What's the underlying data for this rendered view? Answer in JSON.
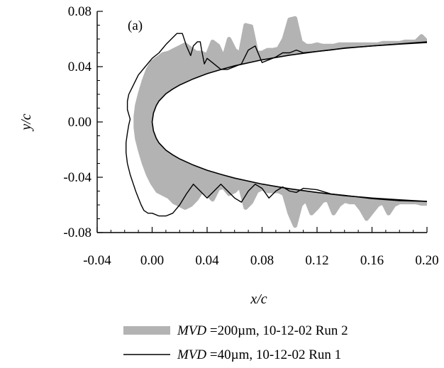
{
  "chart_data": {
    "type": "line",
    "title": "",
    "panel_label": "(a)",
    "xlabel": "x/c",
    "ylabel": "y/c",
    "xlim": [
      -0.04,
      0.2
    ],
    "ylim": [
      -0.08,
      0.08
    ],
    "x_ticks": [
      -0.04,
      0.0,
      0.04,
      0.08,
      0.12,
      0.16,
      0.2
    ],
    "x_tick_labels": [
      "-0.04",
      "0.00",
      "0.04",
      "0.08",
      "0.12",
      "0.16",
      "0.20"
    ],
    "y_ticks": [
      -0.08,
      -0.04,
      0.0,
      0.04,
      0.08
    ],
    "y_tick_labels": [
      "-0.08",
      "-0.04",
      "0.00",
      "0.04",
      "0.08"
    ],
    "grid": false,
    "legend_placement": "below",
    "colors": {
      "clean_airfoil": "#000000",
      "ice_200": "#b3b3b3",
      "ice_40": "#000000"
    },
    "clean_airfoil": {
      "x": [
        0.2,
        0.18,
        0.16,
        0.14,
        0.12,
        0.1,
        0.08,
        0.06,
        0.05,
        0.04,
        0.03,
        0.02,
        0.015,
        0.01,
        0.005,
        0.003,
        0.001,
        0.0,
        0.001,
        0.003,
        0.005,
        0.01,
        0.015,
        0.02,
        0.03,
        0.04,
        0.05,
        0.06,
        0.08,
        0.1,
        0.12,
        0.14,
        0.16,
        0.18,
        0.2
      ],
      "y": [
        0.0575,
        0.0563,
        0.055,
        0.0533,
        0.051,
        0.0483,
        0.0449,
        0.0406,
        0.0379,
        0.0349,
        0.0312,
        0.0267,
        0.0238,
        0.0204,
        0.0152,
        0.0118,
        0.0065,
        0.0,
        -0.0065,
        -0.0118,
        -0.0152,
        -0.0204,
        -0.0238,
        -0.0267,
        -0.0312,
        -0.0349,
        -0.0379,
        -0.0406,
        -0.0449,
        -0.0483,
        -0.051,
        -0.0533,
        -0.055,
        -0.0563,
        -0.0575
      ]
    },
    "series": [
      {
        "name": "MVD =200µm, 10-12-02 Run 2",
        "legend_italic": "MVD",
        "legend_rest": " =200µm, 10-12-02 Run 2",
        "style": "thick-gray",
        "upper": {
          "x": [
            -0.012,
            -0.011,
            -0.009,
            -0.006,
            -0.003,
            0.0,
            0.004,
            0.008,
            0.012,
            0.016,
            0.02,
            0.024,
            0.028,
            0.032,
            0.036,
            0.04,
            0.044,
            0.048,
            0.052,
            0.056,
            0.06,
            0.064,
            0.068,
            0.072,
            0.076,
            0.08,
            0.084,
            0.088,
            0.092,
            0.096,
            0.1,
            0.104,
            0.108,
            0.112,
            0.116,
            0.12,
            0.124,
            0.128,
            0.132,
            0.136,
            0.14,
            0.144,
            0.148,
            0.152,
            0.156,
            0.16,
            0.164,
            0.168,
            0.172,
            0.176,
            0.18,
            0.184,
            0.188,
            0.192,
            0.196,
            0.2
          ],
          "y": [
            0.004,
            0.012,
            0.02,
            0.03,
            0.038,
            0.043,
            0.046,
            0.049,
            0.05,
            0.052,
            0.054,
            0.056,
            0.053,
            0.05,
            0.05,
            0.048,
            0.058,
            0.055,
            0.046,
            0.06,
            0.052,
            0.049,
            0.07,
            0.069,
            0.05,
            0.05,
            0.052,
            0.052,
            0.053,
            0.06,
            0.074,
            0.075,
            0.058,
            0.055,
            0.055,
            0.056,
            0.055,
            0.055,
            0.055,
            0.056,
            0.056,
            0.056,
            0.056,
            0.056,
            0.056,
            0.056,
            0.056,
            0.057,
            0.057,
            0.057,
            0.057,
            0.058,
            0.058,
            0.058,
            0.062,
            0.058
          ]
        },
        "lower": {
          "x": [
            -0.012,
            -0.011,
            -0.009,
            -0.006,
            -0.003,
            0.0,
            0.004,
            0.008,
            0.012,
            0.016,
            0.02,
            0.024,
            0.028,
            0.032,
            0.036,
            0.04,
            0.044,
            0.048,
            0.052,
            0.056,
            0.06,
            0.064,
            0.068,
            0.072,
            0.076,
            0.08,
            0.084,
            0.088,
            0.092,
            0.096,
            0.1,
            0.104,
            0.108,
            0.112,
            0.116,
            0.12,
            0.124,
            0.128,
            0.132,
            0.136,
            0.14,
            0.144,
            0.148,
            0.152,
            0.156,
            0.16,
            0.164,
            0.168,
            0.172,
            0.176,
            0.18,
            0.184,
            0.188,
            0.192,
            0.196,
            0.2
          ],
          "y": [
            -0.004,
            -0.012,
            -0.02,
            -0.03,
            -0.038,
            -0.044,
            -0.05,
            -0.052,
            -0.054,
            -0.058,
            -0.06,
            -0.062,
            -0.06,
            -0.056,
            -0.05,
            -0.052,
            -0.056,
            -0.048,
            -0.047,
            -0.052,
            -0.05,
            -0.046,
            -0.062,
            -0.058,
            -0.05,
            -0.048,
            -0.05,
            -0.05,
            -0.05,
            -0.052,
            -0.066,
            -0.075,
            -0.06,
            -0.056,
            -0.066,
            -0.062,
            -0.057,
            -0.056,
            -0.066,
            -0.06,
            -0.057,
            -0.058,
            -0.058,
            -0.063,
            -0.07,
            -0.065,
            -0.06,
            -0.058,
            -0.066,
            -0.06,
            -0.058,
            -0.058,
            -0.058,
            -0.058,
            -0.059,
            -0.059
          ]
        }
      },
      {
        "name": "MVD =40µm, 10-12-02 Run 1",
        "legend_italic": "MVD",
        "legend_rest": " =40µm, 10-12-02 Run 1",
        "style": "thin-black",
        "x": [
          0.2,
          0.18,
          0.16,
          0.14,
          0.13,
          0.12,
          0.11,
          0.105,
          0.1,
          0.095,
          0.09,
          0.085,
          0.08,
          0.075,
          0.07,
          0.065,
          0.06,
          0.055,
          0.05,
          0.045,
          0.04,
          0.038,
          0.036,
          0.035,
          0.033,
          0.03,
          0.028,
          0.025,
          0.022,
          0.018,
          0.014,
          0.01,
          0.005,
          0.0,
          -0.005,
          -0.01,
          -0.014,
          -0.017,
          -0.018,
          -0.018,
          -0.016,
          -0.017,
          -0.018,
          -0.019,
          -0.019,
          -0.018,
          -0.016,
          -0.014,
          -0.012,
          -0.01,
          -0.008,
          -0.006,
          -0.003,
          0.0,
          0.005,
          0.01,
          0.015,
          0.02,
          0.025,
          0.03,
          0.035,
          0.04,
          0.045,
          0.05,
          0.055,
          0.06,
          0.065,
          0.07,
          0.075,
          0.08,
          0.085,
          0.09,
          0.095,
          0.1,
          0.105,
          0.11,
          0.12,
          0.13,
          0.14,
          0.16,
          0.18,
          0.2
        ],
        "y": [
          0.058,
          0.0565,
          0.055,
          0.0535,
          0.052,
          0.051,
          0.05,
          0.052,
          0.05,
          0.05,
          0.047,
          0.045,
          0.043,
          0.055,
          0.052,
          0.042,
          0.04,
          0.038,
          0.038,
          0.042,
          0.046,
          0.042,
          0.052,
          0.058,
          0.058,
          0.055,
          0.048,
          0.055,
          0.064,
          0.064,
          0.06,
          0.056,
          0.05,
          0.046,
          0.04,
          0.034,
          0.026,
          0.02,
          0.015,
          0.009,
          0.002,
          -0.002,
          -0.008,
          -0.015,
          -0.022,
          -0.03,
          -0.038,
          -0.044,
          -0.05,
          -0.055,
          -0.06,
          -0.064,
          -0.066,
          -0.066,
          -0.068,
          -0.068,
          -0.066,
          -0.06,
          -0.052,
          -0.045,
          -0.05,
          -0.055,
          -0.05,
          -0.045,
          -0.05,
          -0.055,
          -0.058,
          -0.05,
          -0.045,
          -0.048,
          -0.055,
          -0.05,
          -0.047,
          -0.05,
          -0.051,
          -0.048,
          -0.049,
          -0.052,
          -0.053,
          -0.0555,
          -0.057,
          -0.0575
        ]
      }
    ]
  },
  "legend": {
    "items": [
      {
        "italic": "MVD",
        "rest": " =200µm, 10-12-02 Run 2"
      },
      {
        "italic": "MVD",
        "rest": " =40µm, 10-12-02 Run 1"
      }
    ]
  }
}
